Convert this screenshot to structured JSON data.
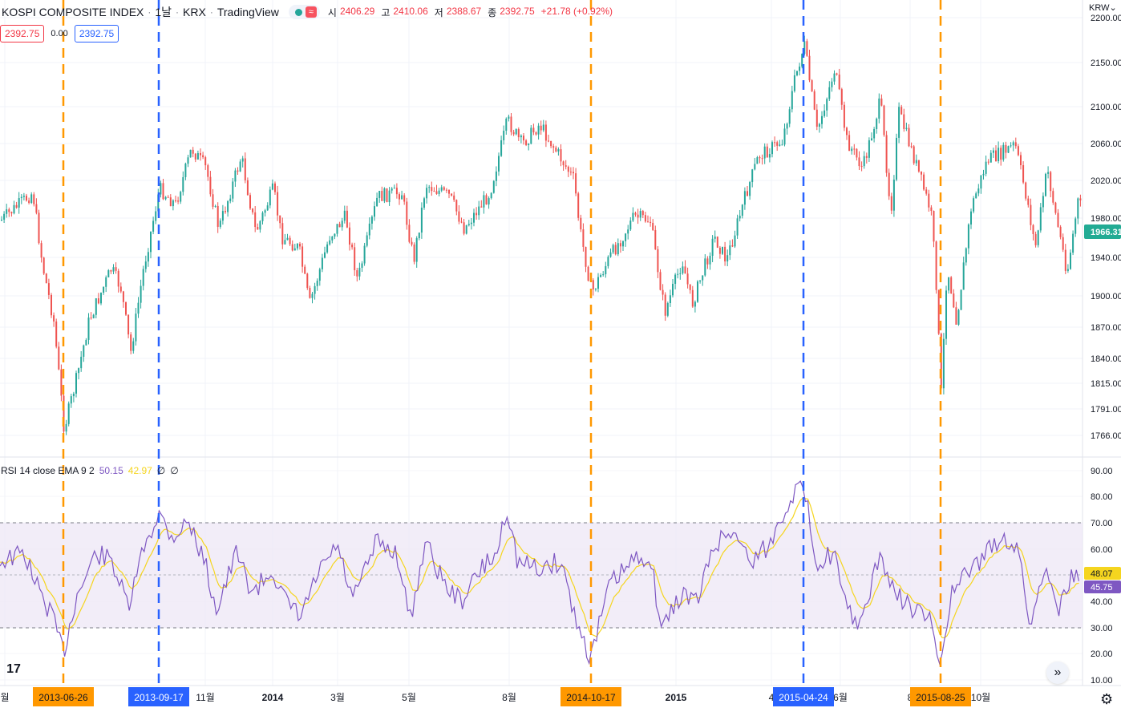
{
  "header": {
    "symbol": "KOSPI COMPOSITE INDEX",
    "interval": "1날",
    "exchange": "KRX",
    "source": "TradingView",
    "open_label": "시",
    "open": "2406.29",
    "high_label": "고",
    "high": "2410.06",
    "low_label": "저",
    "low": "2388.67",
    "close_label": "종",
    "close": "2392.75",
    "change": "+21.78 (+0.92%)",
    "sell_price": "2392.75",
    "spread": "0.00",
    "buy_price": "2392.75"
  },
  "currency": "KRW",
  "rsi": {
    "label": "RSI 14 close EMA 9 2",
    "rsi_value": "50.15",
    "ema_value": "42.97",
    "extra1": "∅",
    "extra2": "∅",
    "upper_band": 70,
    "lower_band": 30,
    "mid_band": 50,
    "ema_badge": "48.07",
    "rsi_badge": "45.75",
    "axis_ticks": [
      "90.00",
      "80.00",
      "70.00",
      "60.00",
      "50.00",
      "40.00",
      "30.00",
      "20.00",
      "10.00"
    ]
  },
  "price_axis": {
    "ticks": [
      "2200.00",
      "2150.00",
      "2100.00",
      "2060.00",
      "2020.00",
      "1980.00",
      "1940.00",
      "1900.00",
      "1870.00",
      "1840.00",
      "1815.00",
      "1791.00",
      "1766.00"
    ],
    "last_price_badge": "1966.31"
  },
  "time_axis": {
    "labels": [
      "월",
      "11월",
      "2014",
      "3월",
      "5월",
      "8월",
      "2015",
      "4",
      "6월",
      "8",
      "10월"
    ],
    "markers": [
      {
        "date": "2013-06-26",
        "color": "#ff9800"
      },
      {
        "date": "2013-09-17",
        "color": "#2962ff"
      },
      {
        "date": "2014-10-17",
        "color": "#ff9800"
      },
      {
        "date": "2015-04-24",
        "color": "#2962ff"
      },
      {
        "date": "2015-08-25",
        "color": "#ff9800"
      }
    ]
  },
  "colors": {
    "up": "#26a69a",
    "down": "#ef5350",
    "rsi_line": "#7e57c2",
    "ema_line": "#f5d51f",
    "band_fill": "#ede7f6",
    "marker_orange": "#ff9800",
    "marker_blue": "#2962ff"
  },
  "icons": {
    "logo": "tradingview-logo-icon",
    "scroll": "double-chevron-right-icon",
    "settings": "gear-icon"
  }
}
